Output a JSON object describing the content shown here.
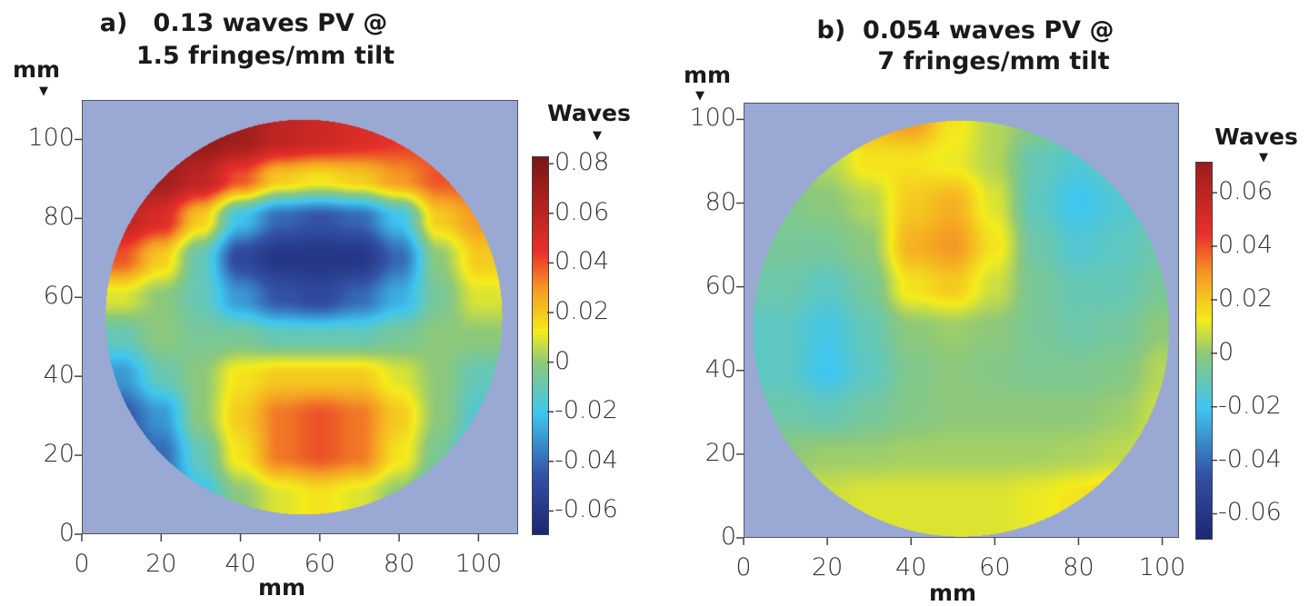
{
  "chart_data": [
    {
      "type": "heatmap",
      "title_line1": "a)   0.13 waves PV @",
      "title_line2": "1.5 fringes/mm tilt",
      "xlabel": "mm",
      "ylabel": "mm",
      "colorbar_label": "Waves",
      "xlim": [
        0,
        110
      ],
      "ylim": [
        0,
        110
      ],
      "xticks": [
        0,
        20,
        40,
        60,
        80,
        100
      ],
      "yticks": [
        0,
        20,
        40,
        60,
        80,
        100
      ],
      "colorbar_range": [
        -0.069,
        0.083
      ],
      "colorbar_ticks": [
        "0.08",
        "0.06",
        "0.04",
        "0.02",
        "0",
        "-0.02",
        "-0.04",
        "-0.06"
      ],
      "colorbar_tick_values": [
        0.08,
        0.06,
        0.04,
        0.02,
        0,
        -0.02,
        -0.04,
        -0.06
      ],
      "aperture": {
        "center_mm": [
          56,
          55
        ],
        "radius_mm": 50
      },
      "grid_x_mm": [
        10,
        20,
        30,
        40,
        50,
        60,
        70,
        80,
        90,
        100
      ],
      "grid_y_mm": [
        100,
        90,
        80,
        70,
        60,
        50,
        40,
        30,
        20,
        10
      ],
      "values_waves": [
        [
          0.08,
          0.08,
          0.075,
          0.07,
          0.06,
          0.055,
          0.05,
          0.045,
          0.04,
          0.035
        ],
        [
          0.075,
          0.07,
          0.06,
          0.04,
          0.02,
          0.015,
          0.02,
          0.03,
          0.04,
          0.04
        ],
        [
          0.06,
          0.05,
          0.02,
          -0.02,
          -0.04,
          -0.045,
          -0.04,
          -0.02,
          0.02,
          0.03
        ],
        [
          0.04,
          0.02,
          -0.01,
          -0.05,
          -0.06,
          -0.06,
          -0.06,
          -0.04,
          0.0,
          0.02
        ],
        [
          0.01,
          0.0,
          -0.01,
          -0.03,
          -0.045,
          -0.05,
          -0.04,
          -0.025,
          -0.005,
          0.01
        ],
        [
          -0.01,
          0.0,
          -0.005,
          -0.005,
          -0.01,
          -0.01,
          -0.01,
          -0.005,
          0.0,
          0.0
        ],
        [
          -0.03,
          -0.01,
          0.0,
          0.015,
          0.02,
          0.02,
          0.02,
          0.01,
          0.0,
          -0.01
        ],
        [
          -0.045,
          -0.03,
          0.0,
          0.02,
          0.035,
          0.04,
          0.035,
          0.02,
          0.0,
          -0.015
        ],
        [
          -0.05,
          -0.04,
          -0.01,
          0.015,
          0.035,
          0.04,
          0.035,
          0.015,
          -0.005,
          -0.02
        ],
        [
          -0.05,
          -0.04,
          -0.02,
          0.0,
          0.01,
          0.015,
          0.01,
          0.0,
          -0.015,
          -0.02
        ]
      ]
    },
    {
      "type": "heatmap",
      "title_line1": "b)  0.054 waves PV @",
      "title_line2": "7 fringes/mm tilt",
      "xlabel": "mm",
      "ylabel": "mm",
      "colorbar_label": "Waves",
      "xlim": [
        0,
        104
      ],
      "ylim": [
        0,
        104
      ],
      "xticks": [
        0,
        20,
        40,
        60,
        80,
        100
      ],
      "yticks": [
        0,
        20,
        40,
        60,
        80,
        100
      ],
      "colorbar_range": [
        -0.069,
        0.0716
      ],
      "colorbar_ticks": [
        "0.06",
        "0.04",
        "0.02",
        "0",
        "-0.02",
        "-0.04",
        "-0.06"
      ],
      "colorbar_tick_values": [
        0.06,
        0.04,
        0.02,
        0,
        -0.02,
        -0.04,
        -0.06
      ],
      "aperture": {
        "center_mm": [
          52,
          50
        ],
        "radius_mm": 49.7
      },
      "grid_x_mm": [
        10,
        20,
        30,
        40,
        50,
        60,
        70,
        80,
        90,
        100
      ],
      "grid_y_mm": [
        100,
        90,
        80,
        70,
        60,
        50,
        40,
        30,
        20,
        10
      ],
      "values_waves": [
        [
          0.0,
          0.01,
          0.025,
          0.03,
          0.015,
          0.005,
          0.0,
          -0.005,
          -0.005,
          0.0
        ],
        [
          0.0,
          0.005,
          0.015,
          0.015,
          0.012,
          0.005,
          -0.01,
          -0.015,
          -0.01,
          -0.005
        ],
        [
          -0.003,
          0.0,
          0.005,
          0.02,
          0.025,
          0.01,
          -0.012,
          -0.02,
          -0.015,
          -0.008
        ],
        [
          -0.005,
          -0.005,
          0.0,
          0.025,
          0.03,
          0.015,
          -0.008,
          -0.015,
          -0.012,
          -0.008
        ],
        [
          -0.008,
          -0.012,
          -0.005,
          0.015,
          0.02,
          0.008,
          -0.005,
          -0.01,
          -0.01,
          -0.005
        ],
        [
          -0.012,
          -0.018,
          -0.01,
          0.0,
          0.002,
          0.0,
          -0.005,
          -0.008,
          -0.006,
          0.0
        ],
        [
          -0.012,
          -0.02,
          -0.012,
          -0.003,
          0.0,
          -0.002,
          -0.004,
          -0.004,
          -0.002,
          0.005
        ],
        [
          -0.008,
          -0.01,
          -0.006,
          -0.002,
          0.0,
          0.0,
          0.0,
          0.0,
          0.002,
          0.008
        ],
        [
          0.0,
          0.002,
          0.002,
          0.003,
          0.003,
          0.003,
          0.003,
          0.004,
          0.006,
          0.01
        ],
        [
          0.005,
          0.008,
          0.01,
          0.01,
          0.01,
          0.01,
          0.012,
          0.015,
          0.02,
          0.01
        ]
      ]
    }
  ],
  "colors": {
    "background_outside_aperture": "#9aa8d4",
    "colorscale": [
      [
        -0.07,
        "#1c2470"
      ],
      [
        -0.045,
        "#3352a6"
      ],
      [
        -0.02,
        "#3fc6f0"
      ],
      [
        0.0,
        "#8cc87c"
      ],
      [
        0.013,
        "#f4ec1c"
      ],
      [
        0.03,
        "#f59a24"
      ],
      [
        0.045,
        "#e8302a"
      ],
      [
        0.083,
        "#7a1616"
      ]
    ]
  }
}
